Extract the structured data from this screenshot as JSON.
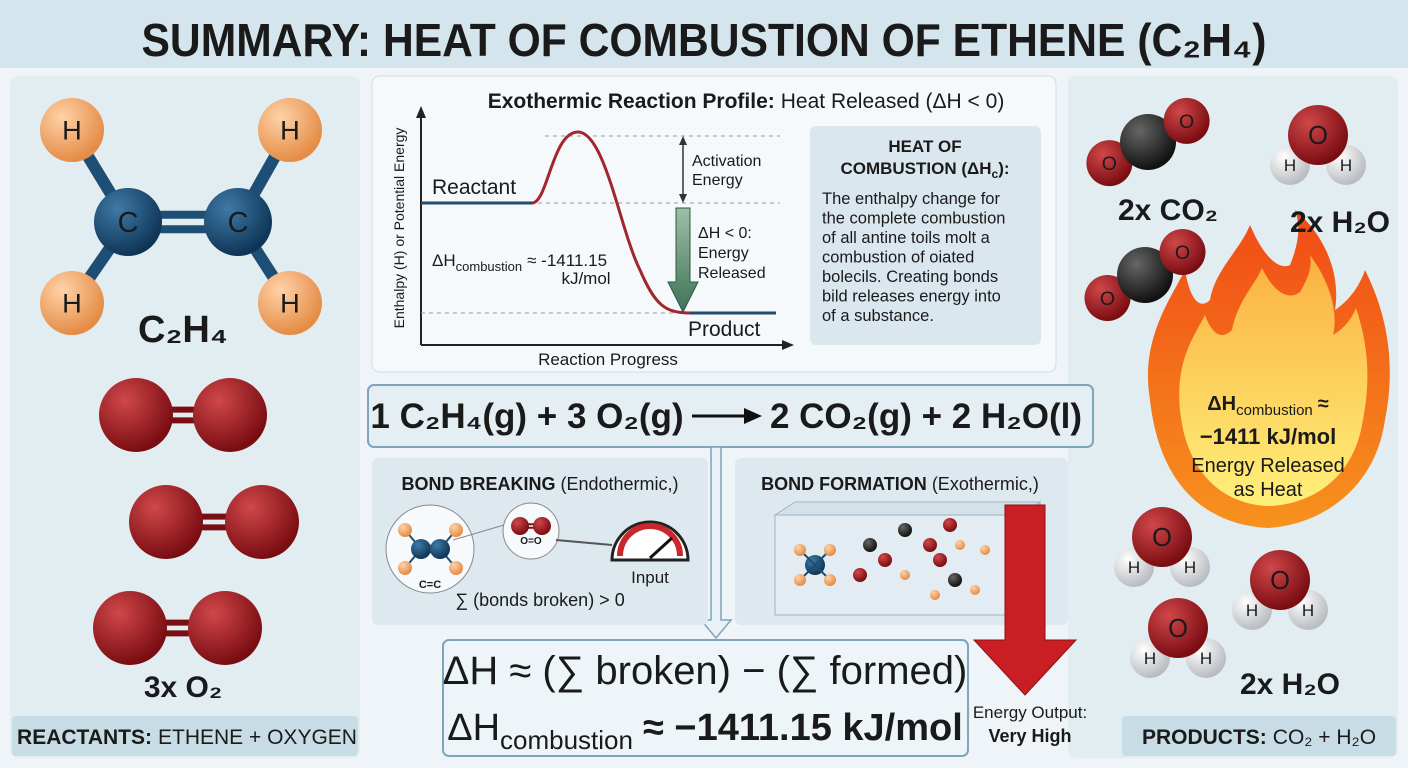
{
  "title": "SUMMARY: HEAT OF COMBUSTION OF ETHENE (C₂H₄)",
  "atoms": {
    "H": "H",
    "C": "C",
    "O": "O"
  },
  "reactants": {
    "ethene_label": "C₂H₄",
    "oxygen_label": "3x O₂",
    "footer_bold": "REACTANTS:",
    "footer_text": "ETHENE + OXYGEN"
  },
  "profile": {
    "title_bold": "Exothermic Reaction Profile:",
    "title_text": "Heat Released (ΔH < 0)",
    "y_axis": "Enthalpy (H) or Potential Energy",
    "x_axis": "Reaction Progress",
    "reactant": "Reactant",
    "product": "Product",
    "activation": [
      "Activation",
      "Energy"
    ],
    "delta": [
      "ΔH < 0:",
      "Energy",
      "Released"
    ],
    "combustion": {
      "symbol": "ΔH",
      "subscript": "combustion",
      "rest": "≈ -1411.15",
      "unit": "kJ/mol"
    }
  },
  "definition": {
    "title": [
      "HEAT OF",
      "COMBUSTION (ΔH",
      "c",
      "):"
    ],
    "lines": [
      "The enthalpy change for",
      "the complete combustion",
      "of all antine toils molt a",
      "combustion of oiated",
      "bolecils. Creating bonds",
      "bild releases energy into",
      "of a substance."
    ]
  },
  "equation": {
    "left": "1 C₂H₄(g) + 3 O₂(g)",
    "right": "2 CO₂(g) + 2 H₂O(l)"
  },
  "bond_breaking": {
    "title_bold": "BOND BREAKING",
    "title_text": "(Endothermic,)",
    "cc": "C=C",
    "oo": "O=O",
    "input": "Input",
    "sum": "∑ (bonds broken) > 0"
  },
  "bond_formation": {
    "title_bold": "BOND FORMATION",
    "title_text": "(Exothermic,)"
  },
  "formula": {
    "line1": "ΔH ≈ (∑ broken) − (∑ formed)",
    "line2": {
      "symbol": "ΔH",
      "subscript": "combustion",
      "rest": "≈ −1411.15 kJ/mol"
    }
  },
  "energy_output": {
    "label": "Energy Output:",
    "value": "Very High"
  },
  "products": {
    "co2_label": "2x CO₂",
    "h2o_label_top": "2x H₂O",
    "h2o_label_bottom": "2x H₂O",
    "flame": {
      "symbol": "ΔH",
      "subscript": "combustion",
      "approx": "≈",
      "value": "−1411 kJ/mol",
      "lines": [
        "Energy Released",
        "as Heat"
      ]
    },
    "footer_bold": "PRODUCTS:",
    "footer_text": "CO₂ + H₂O"
  }
}
